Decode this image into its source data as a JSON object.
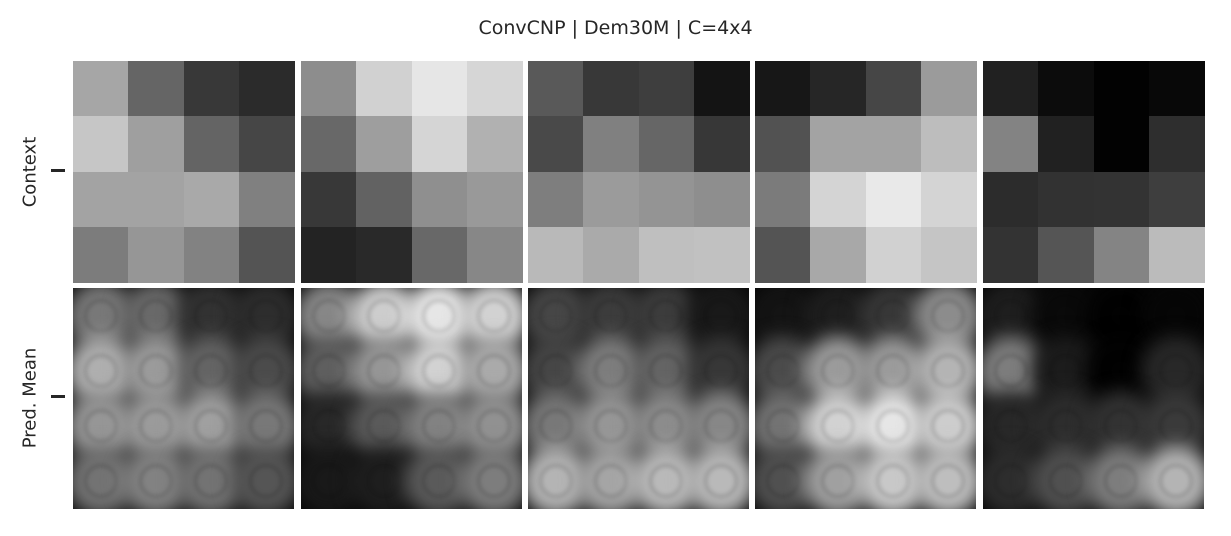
{
  "title": "ConvCNP | Dem30M | C=4x4",
  "rows": [
    {
      "label": "Context"
    },
    {
      "label": "Pred. Mean"
    }
  ],
  "context_grids": [
    [
      [
        166,
        101,
        56,
        43
      ],
      [
        198,
        159,
        100,
        70
      ],
      [
        163,
        163,
        169,
        128
      ],
      [
        124,
        150,
        130,
        84
      ]
    ],
    [
      [
        141,
        209,
        230,
        214
      ],
      [
        104,
        158,
        213,
        177
      ],
      [
        56,
        98,
        143,
        153
      ],
      [
        35,
        41,
        104,
        135
      ]
    ],
    [
      [
        89,
        56,
        62,
        20
      ],
      [
        73,
        128,
        102,
        55
      ],
      [
        126,
        155,
        148,
        142
      ],
      [
        185,
        170,
        191,
        193
      ]
    ],
    [
      [
        23,
        38,
        70,
        155
      ],
      [
        82,
        163,
        163,
        189
      ],
      [
        123,
        212,
        233,
        212
      ],
      [
        84,
        168,
        209,
        197
      ]
    ],
    [
      [
        33,
        12,
        2,
        8
      ],
      [
        131,
        33,
        2,
        46
      ],
      [
        44,
        50,
        51,
        62
      ],
      [
        51,
        85,
        132,
        187
      ]
    ]
  ],
  "pred_mean_grids": [
    [
      [
        120,
        105,
        50,
        45
      ],
      [
        175,
        155,
        100,
        75
      ],
      [
        150,
        155,
        160,
        120
      ],
      [
        115,
        130,
        115,
        85
      ]
    ],
    [
      [
        135,
        205,
        230,
        210
      ],
      [
        95,
        150,
        210,
        170
      ],
      [
        40,
        90,
        130,
        145
      ],
      [
        25,
        30,
        90,
        125
      ]
    ],
    [
      [
        70,
        60,
        60,
        25
      ],
      [
        70,
        125,
        100,
        55
      ],
      [
        120,
        150,
        140,
        135
      ],
      [
        180,
        165,
        185,
        185
      ]
    ],
    [
      [
        20,
        30,
        55,
        140
      ],
      [
        75,
        155,
        155,
        180
      ],
      [
        115,
        210,
        230,
        205
      ],
      [
        80,
        160,
        200,
        190
      ]
    ],
    [
      [
        30,
        10,
        2,
        6
      ],
      [
        125,
        28,
        2,
        40
      ],
      [
        40,
        45,
        50,
        58
      ],
      [
        45,
        80,
        125,
        180
      ]
    ]
  ]
}
